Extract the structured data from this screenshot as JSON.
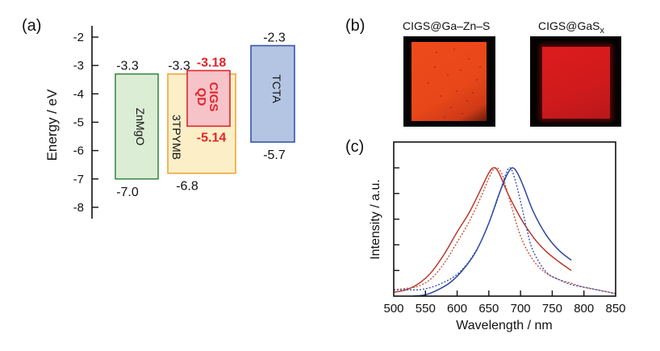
{
  "panels": {
    "a": {
      "label": "(a)"
    },
    "b": {
      "label": "(b)"
    },
    "c": {
      "label": "(c)"
    }
  },
  "chart_data": [
    {
      "type": "energy-level-diagram",
      "panel": "(a)",
      "ylabel": "Energy / eV",
      "ylim": [
        -8.2,
        -1.6
      ],
      "yticks": [
        -2,
        -3,
        -4,
        -5,
        -6,
        -7,
        -8
      ],
      "ytick_labels": [
        "-2",
        "-3",
        "-4",
        "-5",
        "-6",
        "-7",
        "-8"
      ],
      "layers": [
        {
          "name": "ZnMgO",
          "top": -3.3,
          "bottom": -7.0,
          "top_label": "-3.3",
          "bottom_label": "-7.0",
          "fill": "#dcedd6",
          "stroke": "#3e8a45",
          "label_color": "#111111",
          "text_rotation": "90cw"
        },
        {
          "name": "3TPYMB",
          "top": -3.3,
          "bottom": -6.8,
          "top_label": "-3.3",
          "bottom_label": "-6.8",
          "fill": "#fcefc8",
          "stroke": "#f0a53a",
          "label_color": "#111111",
          "text_rotation": "90cw"
        },
        {
          "name": "CIGS QD",
          "lines": [
            "CIGS",
            "QD"
          ],
          "top": -3.18,
          "bottom": -5.14,
          "top_label": "-3.18",
          "bottom_label": "-5.14",
          "fill": "#f6c3c8",
          "stroke": "#d9262d",
          "label_color": "#e0242c",
          "text_rotation": "90cw"
        },
        {
          "name": "TCTA",
          "top": -2.3,
          "bottom": -5.7,
          "top_label": "-2.3",
          "bottom_label": "-5.7",
          "fill": "#b4c5e3",
          "stroke": "#3656a8",
          "label_color": "#111111",
          "text_rotation": "90cw"
        }
      ]
    },
    {
      "type": "image-pair",
      "panel": "(b)",
      "images": [
        {
          "title": "CIGS@Ga–Zn–S",
          "description": "orange emitting device photo"
        },
        {
          "title_main": "CIGS@GaS",
          "title_sub": "x",
          "description": "red emitting device photo"
        }
      ]
    },
    {
      "type": "line",
      "panel": "(c)",
      "title": "",
      "xlabel": "Wavelength / nm",
      "ylabel": "Intensity / a.u.",
      "xlim": [
        500,
        850
      ],
      "ylim": [
        0,
        1.0
      ],
      "xticks": [
        500,
        550,
        600,
        650,
        700,
        750,
        800,
        850
      ],
      "xtick_labels": [
        "500",
        "550",
        "600",
        "650",
        "700",
        "750",
        "800",
        "850"
      ],
      "yticks": [
        0.2,
        0.4,
        0.6,
        0.8,
        1.0
      ],
      "ytick_labels_visible": false,
      "grid": false,
      "legend": "none",
      "series": [
        {
          "name": "CIGS@Ga–Zn–S solid",
          "color": "#b8382a",
          "style": "solid",
          "x": [
            500,
            520,
            540,
            560,
            580,
            600,
            620,
            640,
            650,
            657,
            665,
            680,
            700,
            720,
            740,
            760,
            780
          ],
          "y": [
            0.03,
            0.05,
            0.1,
            0.19,
            0.33,
            0.5,
            0.66,
            0.86,
            0.96,
            1.0,
            0.97,
            0.8,
            0.61,
            0.46,
            0.35,
            0.27,
            0.2
          ]
        },
        {
          "name": "CIGS@Ga–Zn–S dotted",
          "color": "#c8503a",
          "style": "dotted",
          "x": [
            500,
            520,
            540,
            560,
            580,
            600,
            620,
            640,
            650,
            660,
            670,
            680,
            700,
            720,
            740,
            760,
            780,
            800,
            820,
            850
          ],
          "y": [
            0.05,
            0.06,
            0.08,
            0.14,
            0.26,
            0.42,
            0.59,
            0.8,
            0.92,
            1.0,
            0.96,
            0.8,
            0.47,
            0.28,
            0.18,
            0.13,
            0.1,
            0.07,
            0.05,
            0.02
          ]
        },
        {
          "name": "CIGS@GaSx solid",
          "color": "#2d46a0",
          "style": "solid",
          "x": [
            530,
            550,
            570,
            590,
            610,
            630,
            650,
            665,
            678,
            687,
            695,
            705,
            720,
            740,
            760,
            780
          ],
          "y": [
            0.0,
            0.01,
            0.05,
            0.11,
            0.21,
            0.35,
            0.57,
            0.78,
            0.94,
            1.0,
            0.96,
            0.85,
            0.66,
            0.48,
            0.36,
            0.28
          ]
        },
        {
          "name": "CIGS@GaSx dotted",
          "color": "#3b52b0",
          "style": "dotted",
          "x": [
            500,
            520,
            540,
            560,
            580,
            600,
            620,
            640,
            660,
            672,
            682,
            690,
            700,
            710,
            720,
            740,
            760,
            780,
            800,
            820,
            850
          ],
          "y": [
            0.05,
            0.05,
            0.05,
            0.07,
            0.11,
            0.17,
            0.28,
            0.45,
            0.7,
            0.88,
            1.0,
            0.93,
            0.74,
            0.52,
            0.35,
            0.19,
            0.13,
            0.09,
            0.07,
            0.05,
            0.02
          ]
        }
      ]
    }
  ]
}
